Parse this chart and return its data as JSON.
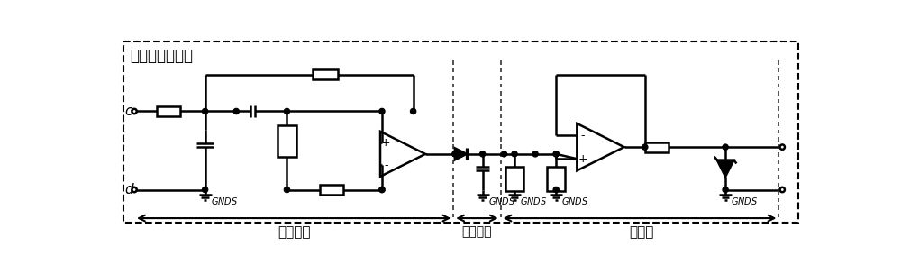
{
  "title": "信号解调接收端",
  "section_labels": [
    "带通滤波",
    "包络解调",
    "比较器"
  ],
  "ground_label": "GNDS",
  "left_labels": [
    "c",
    "d"
  ],
  "bg_color": "#ffffff",
  "line_color": "#000000",
  "lw": 1.8
}
